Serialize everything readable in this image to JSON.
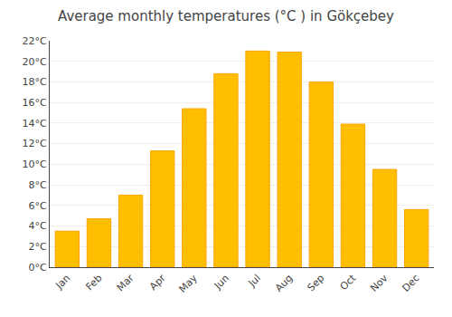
{
  "chart_data": {
    "type": "bar",
    "title": "Average monthly temperatures (°C ) in Gökçebey",
    "categories": [
      "Jan",
      "Feb",
      "Mar",
      "Apr",
      "May",
      "Jun",
      "Jul",
      "Aug",
      "Sep",
      "Oct",
      "Nov",
      "Dec"
    ],
    "values": [
      3.5,
      4.7,
      7.0,
      11.3,
      15.4,
      18.8,
      21.0,
      20.9,
      18.0,
      13.9,
      9.5,
      5.6
    ],
    "color": "#FFBE00",
    "ylim": [
      0,
      22
    ],
    "yticks": [
      {
        "value": 0,
        "label": "0°C"
      },
      {
        "value": 2,
        "label": "2°C"
      },
      {
        "value": 4,
        "label": "4°C"
      },
      {
        "value": 6,
        "label": "6°C"
      },
      {
        "value": 8,
        "label": "8°C"
      },
      {
        "value": 10,
        "label": "10°C"
      },
      {
        "value": 12,
        "label": "12°C"
      },
      {
        "value": 14,
        "label": "14°C"
      },
      {
        "value": 16,
        "label": "16°C"
      },
      {
        "value": 18,
        "label": "18°C"
      },
      {
        "value": 20,
        "label": "20°C"
      },
      {
        "value": 22,
        "label": "22°C"
      }
    ],
    "grid": true
  }
}
